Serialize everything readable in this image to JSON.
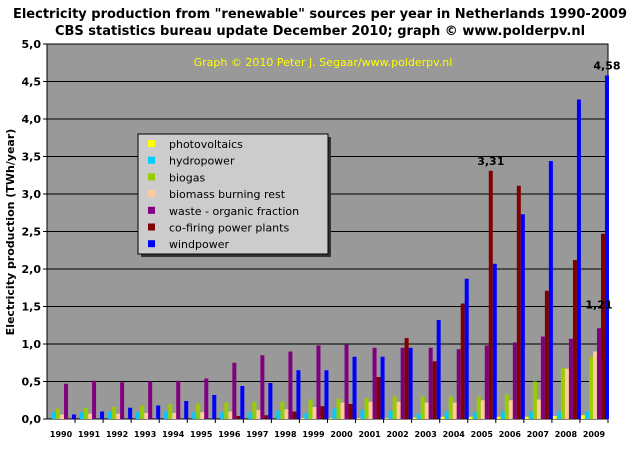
{
  "chart_data": {
    "type": "bar",
    "title_line1": "Electricity production from \"renewable\" sources per year in Netherlands 1990-2009",
    "title_line2": "CBS statistics bureau update December 2010; graph © www.polderpv.nl",
    "credit": "Graph © 2010 Peter J. Segaar/www.polderpv.nl",
    "ylabel": "Electricity production (TWh/year)",
    "xlabel": "",
    "ylim": [
      0,
      5
    ],
    "yticks": [
      "0,0",
      "0,5",
      "1,0",
      "1,5",
      "2,0",
      "2,5",
      "3,0",
      "3,5",
      "4,0",
      "4,5",
      "5,0"
    ],
    "grid": true,
    "legend_position": "left",
    "plot_background": "#999999",
    "categories": [
      "1990",
      "1991",
      "1992",
      "1993",
      "1994",
      "1995",
      "1996",
      "1997",
      "1998",
      "1999",
      "2000",
      "2001",
      "2002",
      "2003",
      "2004",
      "2005",
      "2006",
      "2007",
      "2008",
      "2009"
    ],
    "series": [
      {
        "name": "photovoltaics",
        "color": "#ffff00",
        "values": [
          0,
          0,
          0,
          0,
          0,
          0,
          0,
          0,
          0,
          0.01,
          0.01,
          0.01,
          0.01,
          0.02,
          0.03,
          0.03,
          0.03,
          0.03,
          0.04,
          0.05
        ]
      },
      {
        "name": "hydropower",
        "color": "#00ccff",
        "values": [
          0.09,
          0.09,
          0.1,
          0.09,
          0.1,
          0.09,
          0.09,
          0.09,
          0.11,
          0.08,
          0.14,
          0.12,
          0.11,
          0.07,
          0.1,
          0.09,
          0.1,
          0.1,
          0.1,
          0.1
        ]
      },
      {
        "name": "biogas",
        "color": "#99cc00",
        "values": [
          0.14,
          0.15,
          0.16,
          0.18,
          0.2,
          0.21,
          0.22,
          0.23,
          0.23,
          0.26,
          0.27,
          0.28,
          0.3,
          0.3,
          0.3,
          0.3,
          0.33,
          0.5,
          0.68,
          0.83
        ]
      },
      {
        "name": "biomass burning rest",
        "color": "#ffcc99",
        "values": [
          0.06,
          0.07,
          0.07,
          0.08,
          0.08,
          0.09,
          0.1,
          0.12,
          0.13,
          0.16,
          0.22,
          0.23,
          0.23,
          0.22,
          0.22,
          0.25,
          0.25,
          0.26,
          0.67,
          0.9
        ]
      },
      {
        "name": "waste - organic fraction",
        "color": "#800080",
        "values": [
          0.47,
          0.51,
          0.49,
          0.5,
          0.51,
          0.54,
          0.75,
          0.85,
          0.9,
          0.98,
          0.99,
          0.95,
          0.95,
          0.95,
          0.93,
          0.98,
          1.02,
          1.1,
          1.07,
          1.21
        ]
      },
      {
        "name": "co-firing power plants",
        "color": "#800000",
        "values": [
          0,
          0,
          0,
          0,
          0,
          0,
          0.04,
          0.05,
          0.1,
          0.17,
          0.2,
          0.56,
          1.08,
          0.77,
          1.54,
          3.31,
          3.11,
          1.71,
          2.12,
          2.47
        ]
      },
      {
        "name": "windpower",
        "color": "#0000ff",
        "values": [
          0.06,
          0.1,
          0.15,
          0.18,
          0.24,
          0.32,
          0.44,
          0.48,
          0.65,
          0.65,
          0.83,
          0.83,
          0.95,
          1.32,
          1.87,
          2.07,
          2.73,
          3.44,
          4.26,
          4.58
        ]
      }
    ],
    "annotations": [
      "3,31",
      "4,58",
      "1,21"
    ]
  }
}
